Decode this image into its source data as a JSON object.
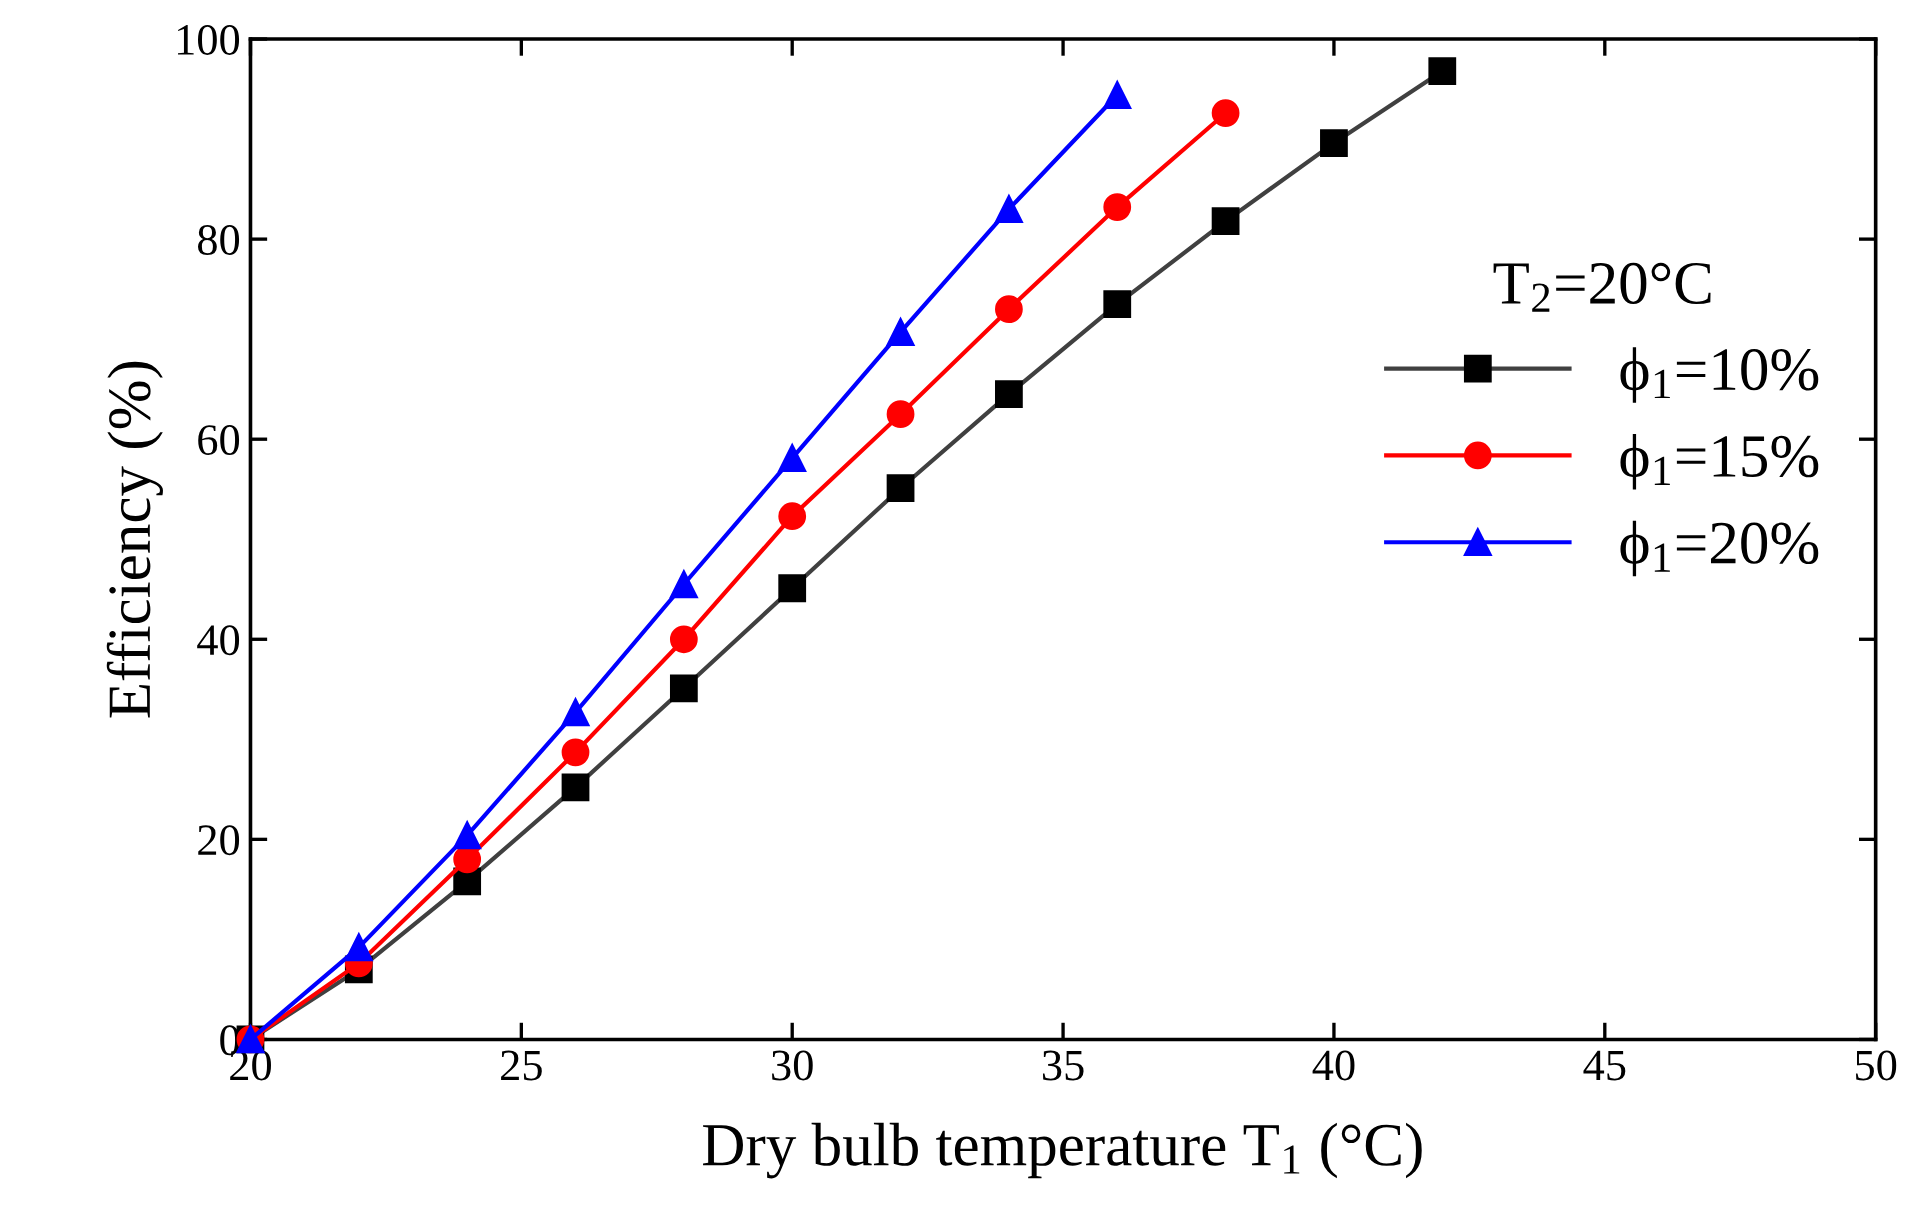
{
  "chart_data": {
    "type": "line",
    "xlabel": "Dry bulb temperature T$_{1}$ (°C)",
    "ylabel": "Efficiency (%)",
    "legend_title": "T$_{2}$=20°C",
    "legend": "right",
    "grid": false,
    "xlim": [
      20,
      50
    ],
    "xticks": [
      20,
      25,
      30,
      35,
      40,
      45,
      50
    ],
    "ylim": [
      0,
      100
    ],
    "yticks": [
      0,
      20,
      40,
      60,
      80,
      100
    ],
    "line_style": "solid",
    "series": [
      {
        "name": "ϕ$_{1}$=10%",
        "color": "#000000",
        "marker": "square",
        "x": [
          20,
          22,
          24,
          26,
          28,
          30,
          32,
          34,
          36,
          38,
          40,
          42
        ],
        "values": [
          0,
          7,
          15.8,
          25.2,
          35.1,
          45.1,
          55.1,
          64.5,
          73.5,
          81.8,
          89.6,
          96.8
        ]
      },
      {
        "name": "ϕ$_{1}$=15%",
        "color": "#ff0000",
        "marker": "circle",
        "x": [
          20,
          22,
          24,
          26,
          28,
          30,
          32,
          34,
          36,
          38
        ],
        "values": [
          0,
          7.6,
          18,
          28.7,
          40,
          52.3,
          62.5,
          73,
          83.2,
          92.6
        ]
      },
      {
        "name": "ϕ$_{1}$=20%",
        "color": "#0000ff",
        "marker": "triangle",
        "x": [
          20,
          22,
          24,
          26,
          28,
          30,
          32,
          34,
          36
        ],
        "values": [
          0,
          9.2,
          20.4,
          32.7,
          45.5,
          58.1,
          70.7,
          83,
          94.4
        ]
      }
    ]
  }
}
